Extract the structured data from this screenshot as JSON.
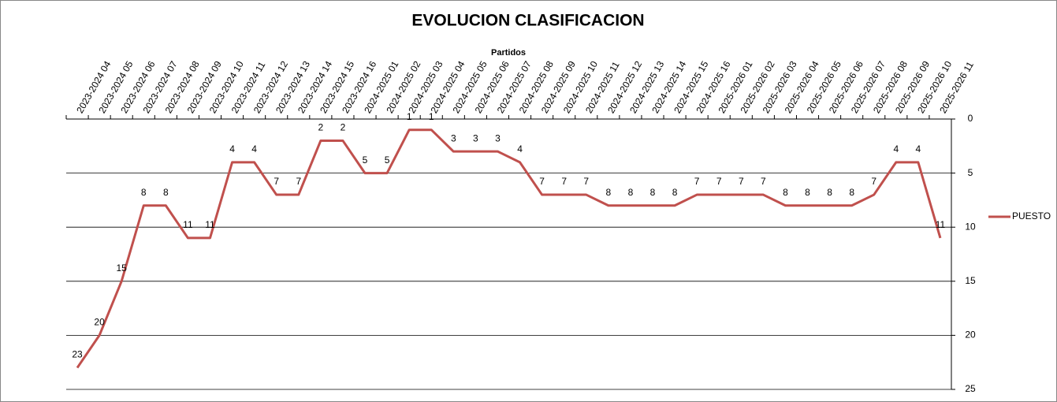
{
  "chart_data": {
    "type": "line",
    "title": "EVOLUCION CLASIFICACION",
    "x_label": "Partidos",
    "categories": [
      "2023-2024 04",
      "2023-2024 05",
      "2023-2024 06",
      "2023-2024 07",
      "2023-2024 08",
      "2023-2024 09",
      "2023-2024 10",
      "2023-2024 11",
      "2023-2024 12",
      "2023-2024 13",
      "2023-2024 14",
      "2023-2024 15",
      "2023-2024 16",
      "2024-2025 01",
      "2024-2025 02",
      "2024-2025 03",
      "2024-2025 04",
      "2024-2025 05",
      "2024-2025 06",
      "2024-2025 07",
      "2024-2025 08",
      "2024-2025 09",
      "2024-2025 10",
      "2024-2025 11",
      "2024-2025 12",
      "2024-2025 13",
      "2024-2025 14",
      "2024-2025 15",
      "2024-2025 16",
      "2025-2026 01",
      "2025-2026 02",
      "2025-2026 03",
      "2025-2026 04",
      "2025-2026 05",
      "2025-2026 06",
      "2025-2026 07",
      "2025-2026 08",
      "2025-2026 09",
      "2025-2026 10",
      "2025-2026 11"
    ],
    "series": [
      {
        "name": "PUESTO",
        "color": "#c0504d",
        "values": [
          23,
          20,
          15,
          8,
          8,
          11,
          11,
          4,
          4,
          7,
          7,
          2,
          2,
          5,
          5,
          1,
          1,
          3,
          3,
          3,
          4,
          7,
          7,
          7,
          8,
          8,
          8,
          8,
          7,
          7,
          7,
          7,
          8,
          8,
          8,
          8,
          7,
          4,
          4,
          11
        ]
      }
    ],
    "ylim": [
      0,
      25
    ],
    "yticks": [
      0,
      5,
      10,
      15,
      20,
      25
    ],
    "y_reversed": true,
    "y_axis_side": "right",
    "grid": true,
    "legend_position": "right",
    "data_labels": true
  }
}
